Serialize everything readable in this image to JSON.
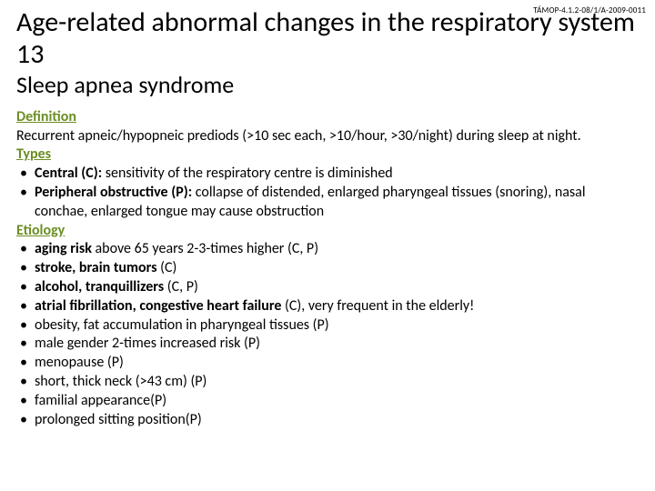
{
  "colors": {
    "background": "#ffffff",
    "text": "#000000",
    "heading_green": "#6b8e23"
  },
  "project_code": "TÁMOP-4.1.2-08/1/A-2009-0011",
  "title": "Age-related abnormal changes in the respiratory system 13",
  "subtitle": "Sleep apnea syndrome",
  "definition_head": "Definition",
  "definition_text": "Recurrent apneic/hypopneic prediods  (>10 sec each, >10/hour, >30/night) during sleep at night.",
  "types_head": "Types",
  "types": {
    "central_label": "Central (C):",
    "central_rest": "  sensitivity of the respiratory centre  is diminished",
    "peripheral_label": "Peripheral  obstructive (P):",
    "peripheral_rest": " collapse of distended,  enlarged pharyngeal tissues (snoring), nasal conchae, enlarged tongue may cause obstruction"
  },
  "etiology_head": "Etiology",
  "etiology": [
    {
      "bold": "aging risk",
      "rest": "  above 65 years 2-3-times higher (C, P)"
    },
    {
      "bold": "stroke, brain tumors",
      "rest": " (C)"
    },
    {
      "bold": "alcohol, tranquillizers",
      "rest": " (C, P)"
    },
    {
      "bold": "atrial fibrillation, congestive heart failure",
      "rest": " (C), very frequent in the elderly!"
    },
    {
      "bold": "",
      "rest": "obesity, fat accumulation in pharyngeal tissues  (P)"
    },
    {
      "bold": "",
      "rest": "male gender 2-times increased risk (P)"
    },
    {
      "bold": "",
      "rest": "menopause (P)"
    },
    {
      "bold": "",
      "rest": "short, thick neck  (>43 cm) (P)"
    },
    {
      "bold": "",
      "rest": "familial appearance(P)"
    },
    {
      "bold": "",
      "rest": "prolonged sitting position(P)"
    }
  ]
}
